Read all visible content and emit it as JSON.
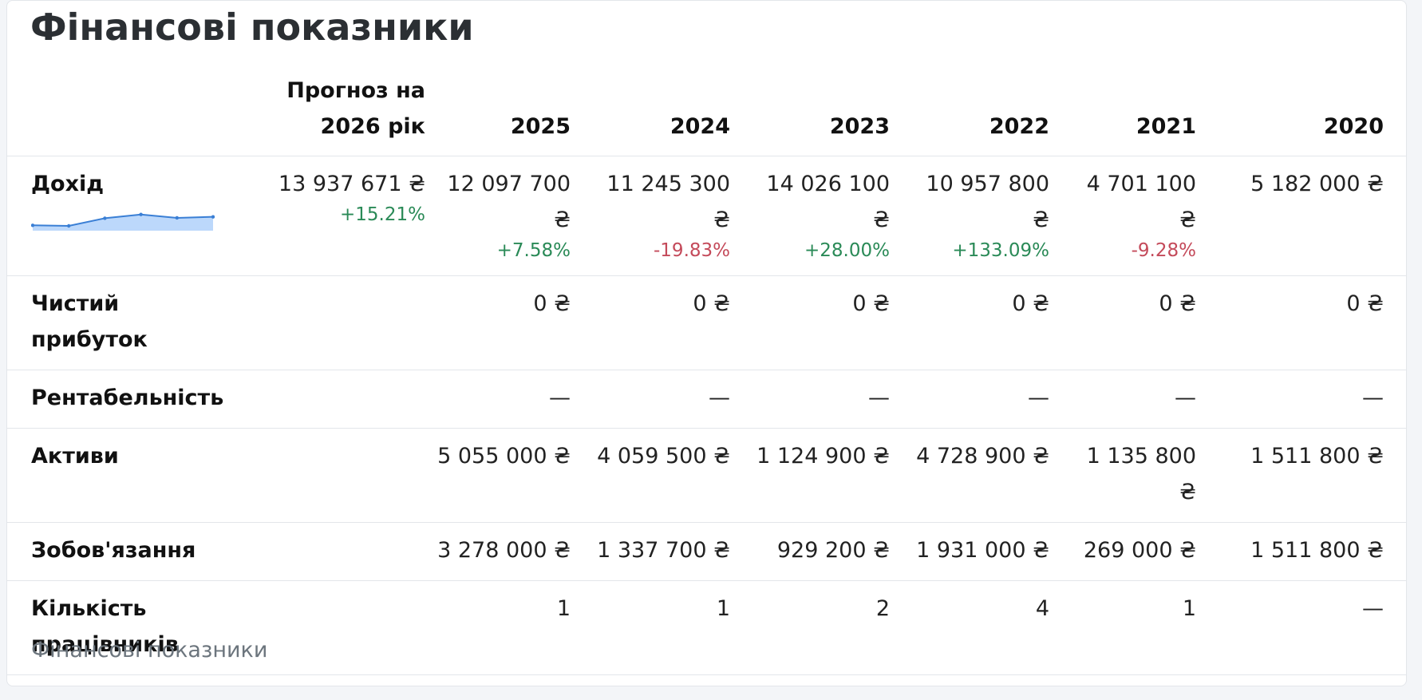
{
  "page_title": "Фінансові показники",
  "footer_caption": "Фінансові показники",
  "colors": {
    "positive": "#2a8a57",
    "negative": "#c44a5a",
    "sparkline_line": "#3a7fd5",
    "sparkline_fill": "#bcd8fb"
  },
  "columns": [
    "Прогноз на 2026 рік",
    "2025",
    "2024",
    "2023",
    "2022",
    "2021",
    "2020"
  ],
  "rows": [
    {
      "label": "Дохід",
      "values": [
        "13 937 671 ₴",
        "12 097 700 ₴",
        "11 245 300 ₴",
        "14 026 100 ₴",
        "10 957 800 ₴",
        "4 701 100 ₴",
        "5 182 000 ₴"
      ],
      "changes": [
        "+15.21%",
        "+7.58%",
        "-19.83%",
        "+28.00%",
        "+133.09%",
        "-9.28%",
        ""
      ],
      "sparkline": [
        5182000,
        4701100,
        10957800,
        14026100,
        11245300,
        12097700
      ]
    },
    {
      "label": "Чистий прибуток",
      "values": [
        "",
        "0 ₴",
        "0 ₴",
        "0 ₴",
        "0 ₴",
        "0 ₴",
        "0 ₴"
      ]
    },
    {
      "label": "Рентабельність",
      "values": [
        "",
        "—",
        "—",
        "—",
        "—",
        "—",
        "—"
      ]
    },
    {
      "label": "Активи",
      "values": [
        "",
        "5 055 000 ₴",
        "4 059 500 ₴",
        "1 124 900 ₴",
        "4 728 900 ₴",
        "1 135 800 ₴",
        "1 511 800 ₴"
      ]
    },
    {
      "label": "Зобов'язання",
      "values": [
        "",
        "3 278 000 ₴",
        "1 337 700 ₴",
        "929 200 ₴",
        "1 931 000 ₴",
        "269 000 ₴",
        "1 511 800 ₴"
      ]
    },
    {
      "label": "Кількість працівників",
      "values": [
        "",
        "1",
        "1",
        "2",
        "4",
        "1",
        "—"
      ]
    }
  ]
}
